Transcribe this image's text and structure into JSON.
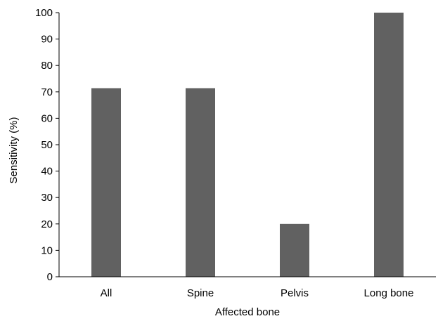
{
  "chart_data": {
    "type": "bar",
    "categories": [
      "All",
      "Spine",
      "Pelvis",
      "Long bone"
    ],
    "values": [
      71.4,
      71.4,
      20,
      100
    ],
    "xlabel": "Affected bone",
    "ylabel": "Sensitivity (%)",
    "ylim": [
      0,
      100
    ],
    "yticks": [
      "0",
      "10",
      "20",
      "30",
      "40",
      "50",
      "60",
      "70",
      "80",
      "90",
      "100"
    ],
    "grid": false,
    "legend": "none",
    "bar_color": "#616161"
  }
}
